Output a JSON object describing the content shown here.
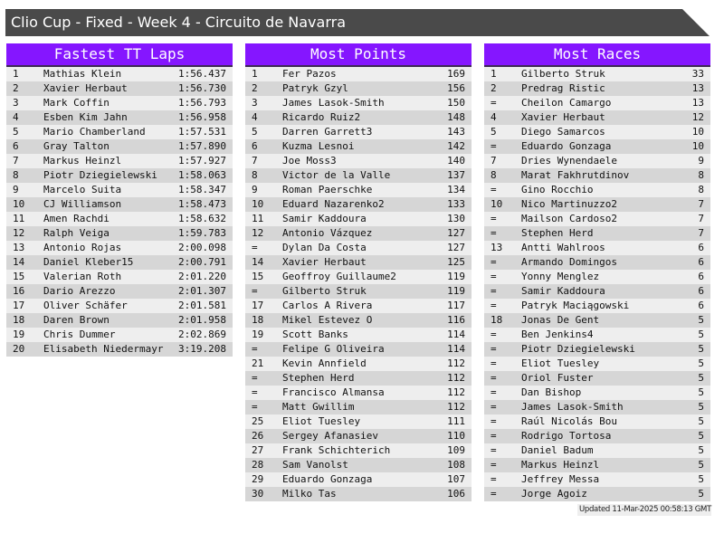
{
  "title": "Clio Cup - Fixed - Week 4 - Circuito de Navarra",
  "colors": {
    "header_bg": "#8516ff",
    "title_bg": "#4a4a4a",
    "row_light": "#eeeeee",
    "row_dark": "#d6d6d6"
  },
  "tables": [
    {
      "heading": "Fastest TT Laps",
      "rows": [
        {
          "rank": "1",
          "name": "Mathias Klein",
          "value": "1:56.437"
        },
        {
          "rank": "2",
          "name": "Xavier Herbaut",
          "value": "1:56.730"
        },
        {
          "rank": "3",
          "name": "Mark Coffin",
          "value": "1:56.793"
        },
        {
          "rank": "4",
          "name": "Esben Kim Jahn",
          "value": "1:56.958"
        },
        {
          "rank": "5",
          "name": "Mario Chamberland",
          "value": "1:57.531"
        },
        {
          "rank": "6",
          "name": "Gray Talton",
          "value": "1:57.890"
        },
        {
          "rank": "7",
          "name": "Markus Heinzl",
          "value": "1:57.927"
        },
        {
          "rank": "8",
          "name": "Piotr Dziegielewski",
          "value": "1:58.063"
        },
        {
          "rank": "9",
          "name": "Marcelo Suita",
          "value": "1:58.347"
        },
        {
          "rank": "10",
          "name": "CJ Williamson",
          "value": "1:58.473"
        },
        {
          "rank": "11",
          "name": "Amen Rachdi",
          "value": "1:58.632"
        },
        {
          "rank": "12",
          "name": "Ralph Veiga",
          "value": "1:59.783"
        },
        {
          "rank": "13",
          "name": "Antonio Rojas",
          "value": "2:00.098"
        },
        {
          "rank": "14",
          "name": "Daniel Kleber15",
          "value": "2:00.791"
        },
        {
          "rank": "15",
          "name": "Valerian Roth",
          "value": "2:01.220"
        },
        {
          "rank": "16",
          "name": "Dario Arezzo",
          "value": "2:01.307"
        },
        {
          "rank": "17",
          "name": "Oliver Schäfer",
          "value": "2:01.581"
        },
        {
          "rank": "18",
          "name": "Daren Brown",
          "value": "2:01.958"
        },
        {
          "rank": "19",
          "name": "Chris Dummer",
          "value": "2:02.869"
        },
        {
          "rank": "20",
          "name": "Elisabeth Niedermayr",
          "value": "3:19.208"
        }
      ]
    },
    {
      "heading": "Most Points",
      "rows": [
        {
          "rank": "1",
          "name": "Fer Pazos",
          "value": "169"
        },
        {
          "rank": "2",
          "name": "Patryk Gzyl",
          "value": "156"
        },
        {
          "rank": "3",
          "name": "James Lasok-Smith",
          "value": "150"
        },
        {
          "rank": "4",
          "name": "Ricardo Ruiz2",
          "value": "148"
        },
        {
          "rank": "5",
          "name": "Darren Garrett3",
          "value": "143"
        },
        {
          "rank": "6",
          "name": "Kuzma Lesnoi",
          "value": "142"
        },
        {
          "rank": "7",
          "name": "Joe Moss3",
          "value": "140"
        },
        {
          "rank": "8",
          "name": "Victor de la Valle",
          "value": "137"
        },
        {
          "rank": "9",
          "name": "Roman Paerschke",
          "value": "134"
        },
        {
          "rank": "10",
          "name": "Eduard Nazarenko2",
          "value": "133"
        },
        {
          "rank": "11",
          "name": "Samir Kaddoura",
          "value": "130"
        },
        {
          "rank": "12",
          "name": "Antonio Vázquez",
          "value": "127"
        },
        {
          "rank": "=",
          "name": "Dylan Da Costa",
          "value": "127"
        },
        {
          "rank": "14",
          "name": "Xavier Herbaut",
          "value": "125"
        },
        {
          "rank": "15",
          "name": "Geoffroy Guillaume2",
          "value": "119"
        },
        {
          "rank": "=",
          "name": "Gilberto Struk",
          "value": "119"
        },
        {
          "rank": "17",
          "name": "Carlos A Rivera",
          "value": "117"
        },
        {
          "rank": "18",
          "name": "Mikel Estevez O",
          "value": "116"
        },
        {
          "rank": "19",
          "name": "Scott Banks",
          "value": "114"
        },
        {
          "rank": "=",
          "name": "Felipe G Oliveira",
          "value": "114"
        },
        {
          "rank": "21",
          "name": "Kevin Annfield",
          "value": "112"
        },
        {
          "rank": "=",
          "name": "Stephen Herd",
          "value": "112"
        },
        {
          "rank": "=",
          "name": "Francisco Almansa",
          "value": "112"
        },
        {
          "rank": "=",
          "name": "Matt Gwillim",
          "value": "112"
        },
        {
          "rank": "25",
          "name": "Eliot Tuesley",
          "value": "111"
        },
        {
          "rank": "26",
          "name": "Sergey Afanasiev",
          "value": "110"
        },
        {
          "rank": "27",
          "name": "Frank Schichterich",
          "value": "109"
        },
        {
          "rank": "28",
          "name": "Sam Vanolst",
          "value": "108"
        },
        {
          "rank": "29",
          "name": "Eduardo Gonzaga",
          "value": "107"
        },
        {
          "rank": "30",
          "name": "Milko Tas",
          "value": "106"
        }
      ]
    },
    {
      "heading": "Most Races",
      "rows": [
        {
          "rank": "1",
          "name": "Gilberto Struk",
          "value": "33"
        },
        {
          "rank": "2",
          "name": "Predrag Ristic",
          "value": "13"
        },
        {
          "rank": "=",
          "name": "Cheilon Camargo",
          "value": "13"
        },
        {
          "rank": "4",
          "name": "Xavier Herbaut",
          "value": "12"
        },
        {
          "rank": "5",
          "name": "Diego Samarcos",
          "value": "10"
        },
        {
          "rank": "=",
          "name": "Eduardo Gonzaga",
          "value": "10"
        },
        {
          "rank": "7",
          "name": "Dries Wynendaele",
          "value": "9"
        },
        {
          "rank": "8",
          "name": "Marat Fakhrutdinov",
          "value": "8"
        },
        {
          "rank": "=",
          "name": "Gino Rocchio",
          "value": "8"
        },
        {
          "rank": "10",
          "name": "Nico Martinuzzo2",
          "value": "7"
        },
        {
          "rank": "=",
          "name": "Mailson Cardoso2",
          "value": "7"
        },
        {
          "rank": "=",
          "name": "Stephen Herd",
          "value": "7"
        },
        {
          "rank": "13",
          "name": "Antti Wahlroos",
          "value": "6"
        },
        {
          "rank": "=",
          "name": "Armando Domingos",
          "value": "6"
        },
        {
          "rank": "=",
          "name": "Yonny Menglez",
          "value": "6"
        },
        {
          "rank": "=",
          "name": "Samir Kaddoura",
          "value": "6"
        },
        {
          "rank": "=",
          "name": "Patryk Maciągowski",
          "value": "6"
        },
        {
          "rank": "18",
          "name": "Jonas De Gent",
          "value": "5"
        },
        {
          "rank": "=",
          "name": "Ben Jenkins4",
          "value": "5"
        },
        {
          "rank": "=",
          "name": "Piotr Dziegielewski",
          "value": "5"
        },
        {
          "rank": "=",
          "name": "Eliot Tuesley",
          "value": "5"
        },
        {
          "rank": "=",
          "name": "Oriol Fuster",
          "value": "5"
        },
        {
          "rank": "=",
          "name": "Dan Bishop",
          "value": "5"
        },
        {
          "rank": "=",
          "name": "James Lasok-Smith",
          "value": "5"
        },
        {
          "rank": "=",
          "name": "Raúl Nicolás Bou",
          "value": "5"
        },
        {
          "rank": "=",
          "name": "Rodrigo Tortosa",
          "value": "5"
        },
        {
          "rank": "=",
          "name": "Daniel Badum",
          "value": "5"
        },
        {
          "rank": "=",
          "name": "Markus Heinzl",
          "value": "5"
        },
        {
          "rank": "=",
          "name": "Jeffrey Messa",
          "value": "5"
        },
        {
          "rank": "=",
          "name": "Jorge Agoiz",
          "value": "5"
        }
      ]
    }
  ],
  "updated": "Updated 11-Mar-2025 00:58:13 GMT"
}
